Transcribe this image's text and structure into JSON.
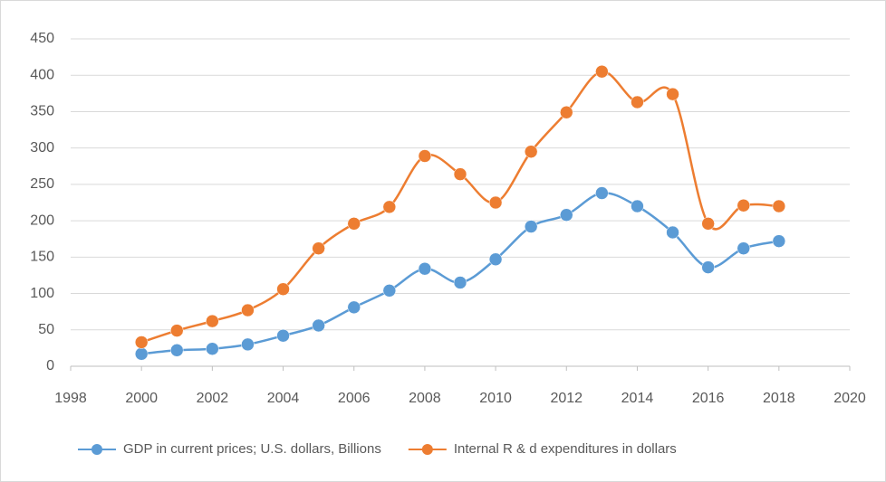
{
  "chart_data": {
    "type": "line",
    "x": [
      2000,
      2001,
      2002,
      2003,
      2004,
      2005,
      2006,
      2007,
      2008,
      2009,
      2010,
      2011,
      2012,
      2013,
      2014,
      2015,
      2016,
      2017,
      2018
    ],
    "series": [
      {
        "name": "GDP in current prices; U.S. dollars, Billions",
        "color": "#5b9bd5",
        "values": [
          17,
          22,
          24,
          30,
          42,
          56,
          81,
          104,
          134,
          115,
          147,
          192,
          208,
          238,
          220,
          184,
          136,
          162,
          172
        ]
      },
      {
        "name": "Internal R & d expenditures in dollars",
        "color": "#ed7d31",
        "values": [
          33,
          49,
          62,
          77,
          106,
          162,
          196,
          219,
          289,
          264,
          225,
          295,
          349,
          405,
          363,
          374,
          196,
          221,
          220
        ]
      }
    ],
    "xlim": [
      1998,
      2020
    ],
    "xticks": [
      1998,
      2000,
      2002,
      2004,
      2006,
      2008,
      2010,
      2012,
      2014,
      2016,
      2018,
      2020
    ],
    "ylim": [
      0,
      450
    ],
    "yticks": [
      0,
      50,
      100,
      150,
      200,
      250,
      300,
      350,
      400,
      450
    ],
    "grid": true,
    "legend": "bottom"
  }
}
